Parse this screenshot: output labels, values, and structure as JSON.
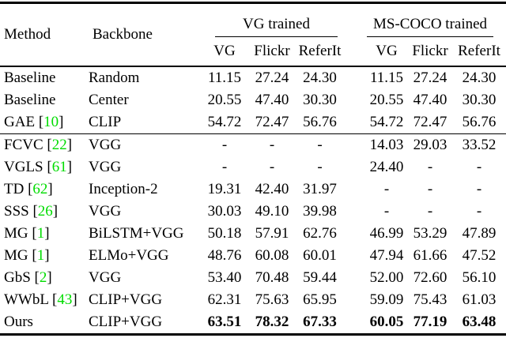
{
  "table": {
    "colors": {
      "citation_green": "#00DC00",
      "text": "#000000",
      "background": "#ffffff"
    },
    "header": {
      "method": "Method",
      "backbone": "Backbone",
      "group1": "VG trained",
      "group2": "MS-COCO trained",
      "subcols": [
        "VG",
        "Flickr",
        "ReferIt"
      ]
    },
    "sections": [
      {
        "rows": [
          {
            "method": "Baseline",
            "cite": null,
            "backbone": "Random",
            "values": [
              "11.15",
              "27.24",
              "24.30",
              "11.15",
              "27.24",
              "24.30"
            ],
            "bold": false
          },
          {
            "method": "Baseline",
            "cite": null,
            "backbone": "Center",
            "values": [
              "20.55",
              "47.40",
              "30.30",
              "20.55",
              "47.40",
              "30.30"
            ],
            "bold": false
          },
          {
            "method": "GAE",
            "cite": "10",
            "backbone": "CLIP",
            "values": [
              "54.72",
              "72.47",
              "56.76",
              "54.72",
              "72.47",
              "56.76"
            ],
            "bold": false
          }
        ]
      },
      {
        "rows": [
          {
            "method": "FCVC",
            "cite": "22",
            "backbone": "VGG",
            "values": [
              "-",
              "-",
              "-",
              "14.03",
              "29.03",
              "33.52"
            ],
            "bold": false
          },
          {
            "method": "VGLS",
            "cite": "61",
            "backbone": "VGG",
            "values": [
              "-",
              "-",
              "-",
              "24.40",
              "-",
              "-"
            ],
            "bold": false
          },
          {
            "method": "TD",
            "cite": "62",
            "backbone": "Inception-2",
            "values": [
              "19.31",
              "42.40",
              "31.97",
              "-",
              "-",
              "-"
            ],
            "bold": false
          },
          {
            "method": "SSS",
            "cite": "26",
            "backbone": "VGG",
            "values": [
              "30.03",
              "49.10",
              "39.98",
              "-",
              "-",
              "-"
            ],
            "bold": false
          },
          {
            "method": "MG",
            "cite": "1",
            "backbone": "BiLSTM+VGG",
            "values": [
              "50.18",
              "57.91",
              "62.76",
              "46.99",
              "53.29",
              "47.89"
            ],
            "bold": false
          },
          {
            "method": "MG",
            "cite": "1",
            "backbone": "ELMo+VGG",
            "values": [
              "48.76",
              "60.08",
              "60.01",
              "47.94",
              "61.66",
              "47.52"
            ],
            "bold": false
          },
          {
            "method": "GbS",
            "cite": "2",
            "backbone": "VGG",
            "values": [
              "53.40",
              "70.48",
              "59.44",
              "52.00",
              "72.60",
              "56.10"
            ],
            "bold": false
          },
          {
            "method": "WWbL",
            "cite": "43",
            "backbone": "CLIP+VGG",
            "values": [
              "62.31",
              "75.63",
              "65.95",
              "59.09",
              "75.43",
              "61.03"
            ],
            "bold": false
          },
          {
            "method": "Ours",
            "cite": null,
            "backbone": "CLIP+VGG",
            "values": [
              "63.51",
              "78.32",
              "67.33",
              "60.05",
              "77.19",
              "63.48"
            ],
            "bold": true
          }
        ]
      }
    ]
  }
}
